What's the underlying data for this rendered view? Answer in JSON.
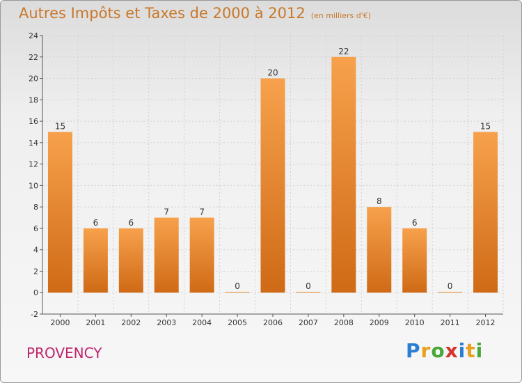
{
  "chart_data": {
    "type": "bar",
    "title": "Autres Impôts et Taxes de 2000 à 2012",
    "unit_label": "(en milliers d'€)",
    "categories": [
      "2000",
      "2001",
      "2002",
      "2003",
      "2004",
      "2005",
      "2006",
      "2007",
      "2008",
      "2009",
      "2010",
      "2011",
      "2012"
    ],
    "values": [
      15,
      6,
      6,
      7,
      7,
      0,
      20,
      0,
      22,
      8,
      6,
      0,
      15
    ],
    "ylim": [
      -2,
      24
    ],
    "yticks": [
      -2,
      0,
      2,
      4,
      6,
      8,
      10,
      12,
      14,
      16,
      18,
      20,
      22,
      24
    ],
    "grid": true,
    "bar_color": "#e8862e"
  },
  "footer": {
    "commune": "PROVENCY",
    "logo": [
      "P",
      "r",
      "o",
      "x",
      "i",
      "t",
      "i"
    ],
    "logo_colors": [
      "#2a7fd4",
      "#e8a01e",
      "#47a83a",
      "#d4342a",
      "#2a7fd4",
      "#e8a01e",
      "#47a83a"
    ]
  }
}
